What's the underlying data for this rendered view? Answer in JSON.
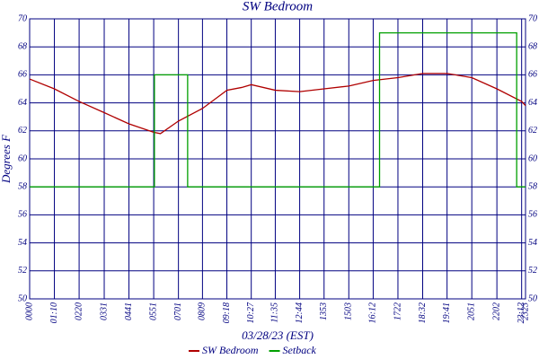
{
  "chart_data": {
    "type": "line",
    "title": "SW Bedroom",
    "x_label": "03/28/23 (EST)",
    "y_label": "Degrees F",
    "x": [
      0,
      70,
      140,
      211,
      281,
      351,
      370,
      421,
      489,
      558,
      600,
      627,
      695,
      764,
      833,
      903,
      972,
      1042,
      1112,
      1181,
      1251,
      1322,
      1392,
      1403
    ],
    "series": [
      {
        "name": "SW Bedroom",
        "color": "#b00000",
        "values": [
          65.7,
          65.0,
          64.1,
          63.3,
          62.5,
          61.9,
          61.8,
          62.7,
          63.6,
          64.9,
          65.1,
          65.3,
          64.9,
          64.8,
          65.0,
          65.2,
          65.6,
          65.8,
          66.1,
          66.1,
          65.8,
          65.0,
          64.1,
          63.8
        ]
      },
      {
        "name": "Setback",
        "color": "#00a000",
        "x": [
          0,
          353,
          353,
          447,
          447,
          990,
          990,
          1378,
          1378,
          1403
        ],
        "values": [
          58,
          58,
          66,
          66,
          58,
          58,
          69,
          69,
          58,
          58
        ]
      }
    ],
    "xlim": [
      0,
      1403
    ],
    "xticks": [
      {
        "value": 0,
        "label": "0000"
      },
      {
        "value": 70,
        "label": "01:10"
      },
      {
        "value": 140,
        "label": "0220"
      },
      {
        "value": 211,
        "label": "0331"
      },
      {
        "value": 281,
        "label": "0441"
      },
      {
        "value": 351,
        "label": "0551"
      },
      {
        "value": 421,
        "label": "0701"
      },
      {
        "value": 489,
        "label": "0809"
      },
      {
        "value": 558,
        "label": "09:18"
      },
      {
        "value": 627,
        "label": "10:27"
      },
      {
        "value": 695,
        "label": "11:35"
      },
      {
        "value": 764,
        "label": "12:44"
      },
      {
        "value": 833,
        "label": "1353"
      },
      {
        "value": 903,
        "label": "1503"
      },
      {
        "value": 972,
        "label": "16:12"
      },
      {
        "value": 1042,
        "label": "1722"
      },
      {
        "value": 1112,
        "label": "18:32"
      },
      {
        "value": 1181,
        "label": "19:41"
      },
      {
        "value": 1251,
        "label": "2051"
      },
      {
        "value": 1322,
        "label": "2202"
      },
      {
        "value": 1392,
        "label": "23:12"
      },
      {
        "value": 1403,
        "label": "2323"
      }
    ],
    "ylim": [
      50,
      70
    ],
    "yticks": [
      50,
      52,
      54,
      56,
      58,
      60,
      62,
      64,
      66,
      68,
      70
    ],
    "grid": true,
    "right_axis": true,
    "legend": "bottom"
  }
}
